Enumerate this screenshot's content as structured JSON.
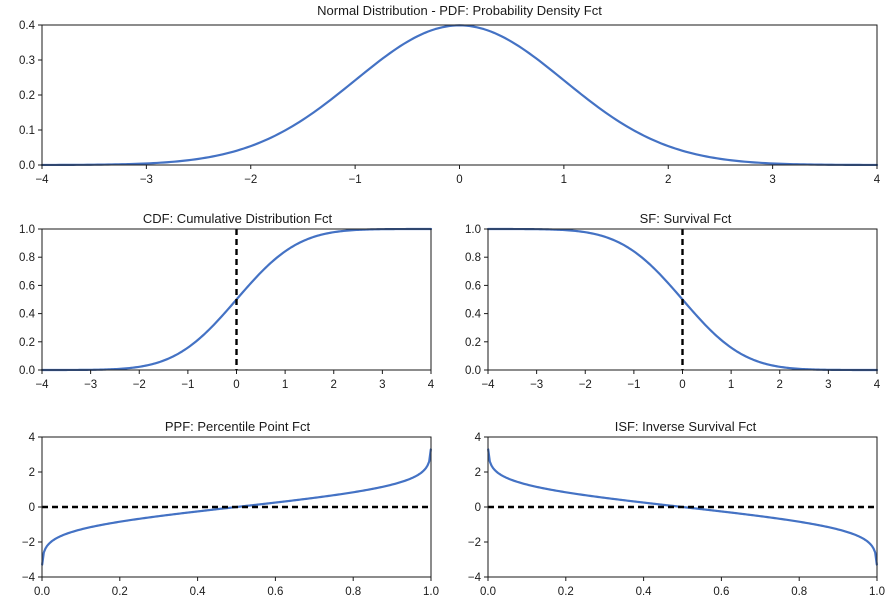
{
  "chart_data": [
    {
      "id": "pdf",
      "type": "line",
      "title": "Normal Distribution - PDF: Probability Density Fct",
      "xlim": [
        -4,
        4
      ],
      "ylim": [
        0,
        0.4
      ],
      "x_ticks": [
        -4,
        -3,
        -2,
        -1,
        0,
        1,
        2,
        3,
        4
      ],
      "x_tick_labels": [
        "−4",
        "−3",
        "−2",
        "−1",
        "0",
        "1",
        "2",
        "3",
        "4"
      ],
      "y_ticks": [
        0,
        0.1,
        0.2,
        0.3,
        0.4
      ],
      "y_tick_labels": [
        "0.0",
        "0.1",
        "0.2",
        "0.3",
        "0.4"
      ],
      "series": [
        {
          "color": "#4472c4",
          "x": [
            -4,
            -3.5,
            -3,
            -2.5,
            -2,
            -1.5,
            -1,
            -0.5,
            0,
            0.5,
            1,
            1.5,
            2,
            2.5,
            3,
            3.5,
            4
          ],
          "y": [
            0.0001,
            0.0009,
            0.0044,
            0.0175,
            0.054,
            0.1295,
            0.242,
            0.3521,
            0.3989,
            0.3521,
            0.242,
            0.1295,
            0.054,
            0.0175,
            0.0044,
            0.0009,
            0.0001
          ]
        }
      ],
      "reference_lines": []
    },
    {
      "id": "cdf",
      "type": "line",
      "title": "CDF: Cumulative Distribution Fct",
      "xlim": [
        -4,
        4
      ],
      "ylim": [
        0,
        1
      ],
      "x_ticks": [
        -4,
        -3,
        -2,
        -1,
        0,
        1,
        2,
        3,
        4
      ],
      "x_tick_labels": [
        "−4",
        "−3",
        "−2",
        "−1",
        "0",
        "1",
        "2",
        "3",
        "4"
      ],
      "y_ticks": [
        0,
        0.2,
        0.4,
        0.6,
        0.8,
        1
      ],
      "y_tick_labels": [
        "0.0",
        "0.2",
        "0.4",
        "0.6",
        "0.8",
        "1.0"
      ],
      "series": [
        {
          "color": "#4472c4",
          "x": [
            -4,
            -3.5,
            -3,
            -2.5,
            -2,
            -1.5,
            -1,
            -0.5,
            0,
            0.5,
            1,
            1.5,
            2,
            2.5,
            3,
            3.5,
            4
          ],
          "y": [
            0,
            0.0002,
            0.0013,
            0.0062,
            0.0228,
            0.0668,
            0.1587,
            0.3085,
            0.5,
            0.6915,
            0.8413,
            0.9332,
            0.9772,
            0.9938,
            0.9987,
            0.9998,
            1
          ]
        }
      ],
      "reference_lines": [
        {
          "orientation": "vertical",
          "value": 0,
          "style": "dashed",
          "color": "#000000"
        }
      ]
    },
    {
      "id": "sf",
      "type": "line",
      "title": "SF: Survival Fct",
      "xlim": [
        -4,
        4
      ],
      "ylim": [
        0,
        1
      ],
      "x_ticks": [
        -4,
        -3,
        -2,
        -1,
        0,
        1,
        2,
        3,
        4
      ],
      "x_tick_labels": [
        "−4",
        "−3",
        "−2",
        "−1",
        "0",
        "1",
        "2",
        "3",
        "4"
      ],
      "y_ticks": [
        0,
        0.2,
        0.4,
        0.6,
        0.8,
        1
      ],
      "y_tick_labels": [
        "0.0",
        "0.2",
        "0.4",
        "0.6",
        "0.8",
        "1.0"
      ],
      "series": [
        {
          "color": "#4472c4",
          "x": [
            -4,
            -3.5,
            -3,
            -2.5,
            -2,
            -1.5,
            -1,
            -0.5,
            0,
            0.5,
            1,
            1.5,
            2,
            2.5,
            3,
            3.5,
            4
          ],
          "y": [
            1,
            0.9998,
            0.9987,
            0.9938,
            0.9772,
            0.9332,
            0.8413,
            0.6915,
            0.5,
            0.3085,
            0.1587,
            0.0668,
            0.0228,
            0.0062,
            0.0013,
            0.0002,
            0
          ]
        }
      ],
      "reference_lines": [
        {
          "orientation": "vertical",
          "value": 0,
          "style": "dashed",
          "color": "#000000"
        }
      ]
    },
    {
      "id": "ppf",
      "type": "line",
      "title": "PPF: Percentile Point Fct",
      "xlim": [
        0,
        1
      ],
      "ylim": [
        -4,
        4
      ],
      "x_ticks": [
        0,
        0.2,
        0.4,
        0.6,
        0.8,
        1
      ],
      "x_tick_labels": [
        "0.0",
        "0.2",
        "0.4",
        "0.6",
        "0.8",
        "1.0"
      ],
      "y_ticks": [
        -4,
        -2,
        0,
        2,
        4
      ],
      "y_tick_labels": [
        "−4",
        "−2",
        "0",
        "2",
        "4"
      ],
      "series": [
        {
          "color": "#4472c4",
          "x": [
            0.001,
            0.005,
            0.01,
            0.02,
            0.05,
            0.1,
            0.2,
            0.3,
            0.4,
            0.5,
            0.6,
            0.7,
            0.8,
            0.9,
            0.95,
            0.98,
            0.99,
            0.995,
            0.999
          ],
          "y": [
            -3.09,
            -2.58,
            -2.33,
            -2.05,
            -1.64,
            -1.28,
            -0.84,
            -0.52,
            -0.25,
            0,
            0.25,
            0.52,
            0.84,
            1.28,
            1.64,
            2.05,
            2.33,
            2.58,
            3.09
          ]
        }
      ],
      "reference_lines": [
        {
          "orientation": "horizontal",
          "value": 0,
          "style": "dashed",
          "color": "#000000"
        }
      ]
    },
    {
      "id": "isf",
      "type": "line",
      "title": "ISF: Inverse Survival Fct",
      "xlim": [
        0,
        1
      ],
      "ylim": [
        -4,
        4
      ],
      "x_ticks": [
        0,
        0.2,
        0.4,
        0.6,
        0.8,
        1
      ],
      "x_tick_labels": [
        "0.0",
        "0.2",
        "0.4",
        "0.6",
        "0.8",
        "1.0"
      ],
      "y_ticks": [
        -4,
        -2,
        0,
        2,
        4
      ],
      "y_tick_labels": [
        "−4",
        "−2",
        "0",
        "2",
        "4"
      ],
      "series": [
        {
          "color": "#4472c4",
          "x": [
            0.001,
            0.005,
            0.01,
            0.02,
            0.05,
            0.1,
            0.2,
            0.3,
            0.4,
            0.5,
            0.6,
            0.7,
            0.8,
            0.9,
            0.95,
            0.98,
            0.99,
            0.995,
            0.999
          ],
          "y": [
            3.09,
            2.58,
            2.33,
            2.05,
            1.64,
            1.28,
            0.84,
            0.52,
            0.25,
            0,
            -0.25,
            -0.52,
            -0.84,
            -1.28,
            -1.64,
            -2.05,
            -2.33,
            -2.58,
            -3.09
          ]
        }
      ],
      "reference_lines": [
        {
          "orientation": "horizontal",
          "value": 0,
          "style": "dashed",
          "color": "#000000"
        }
      ]
    }
  ]
}
